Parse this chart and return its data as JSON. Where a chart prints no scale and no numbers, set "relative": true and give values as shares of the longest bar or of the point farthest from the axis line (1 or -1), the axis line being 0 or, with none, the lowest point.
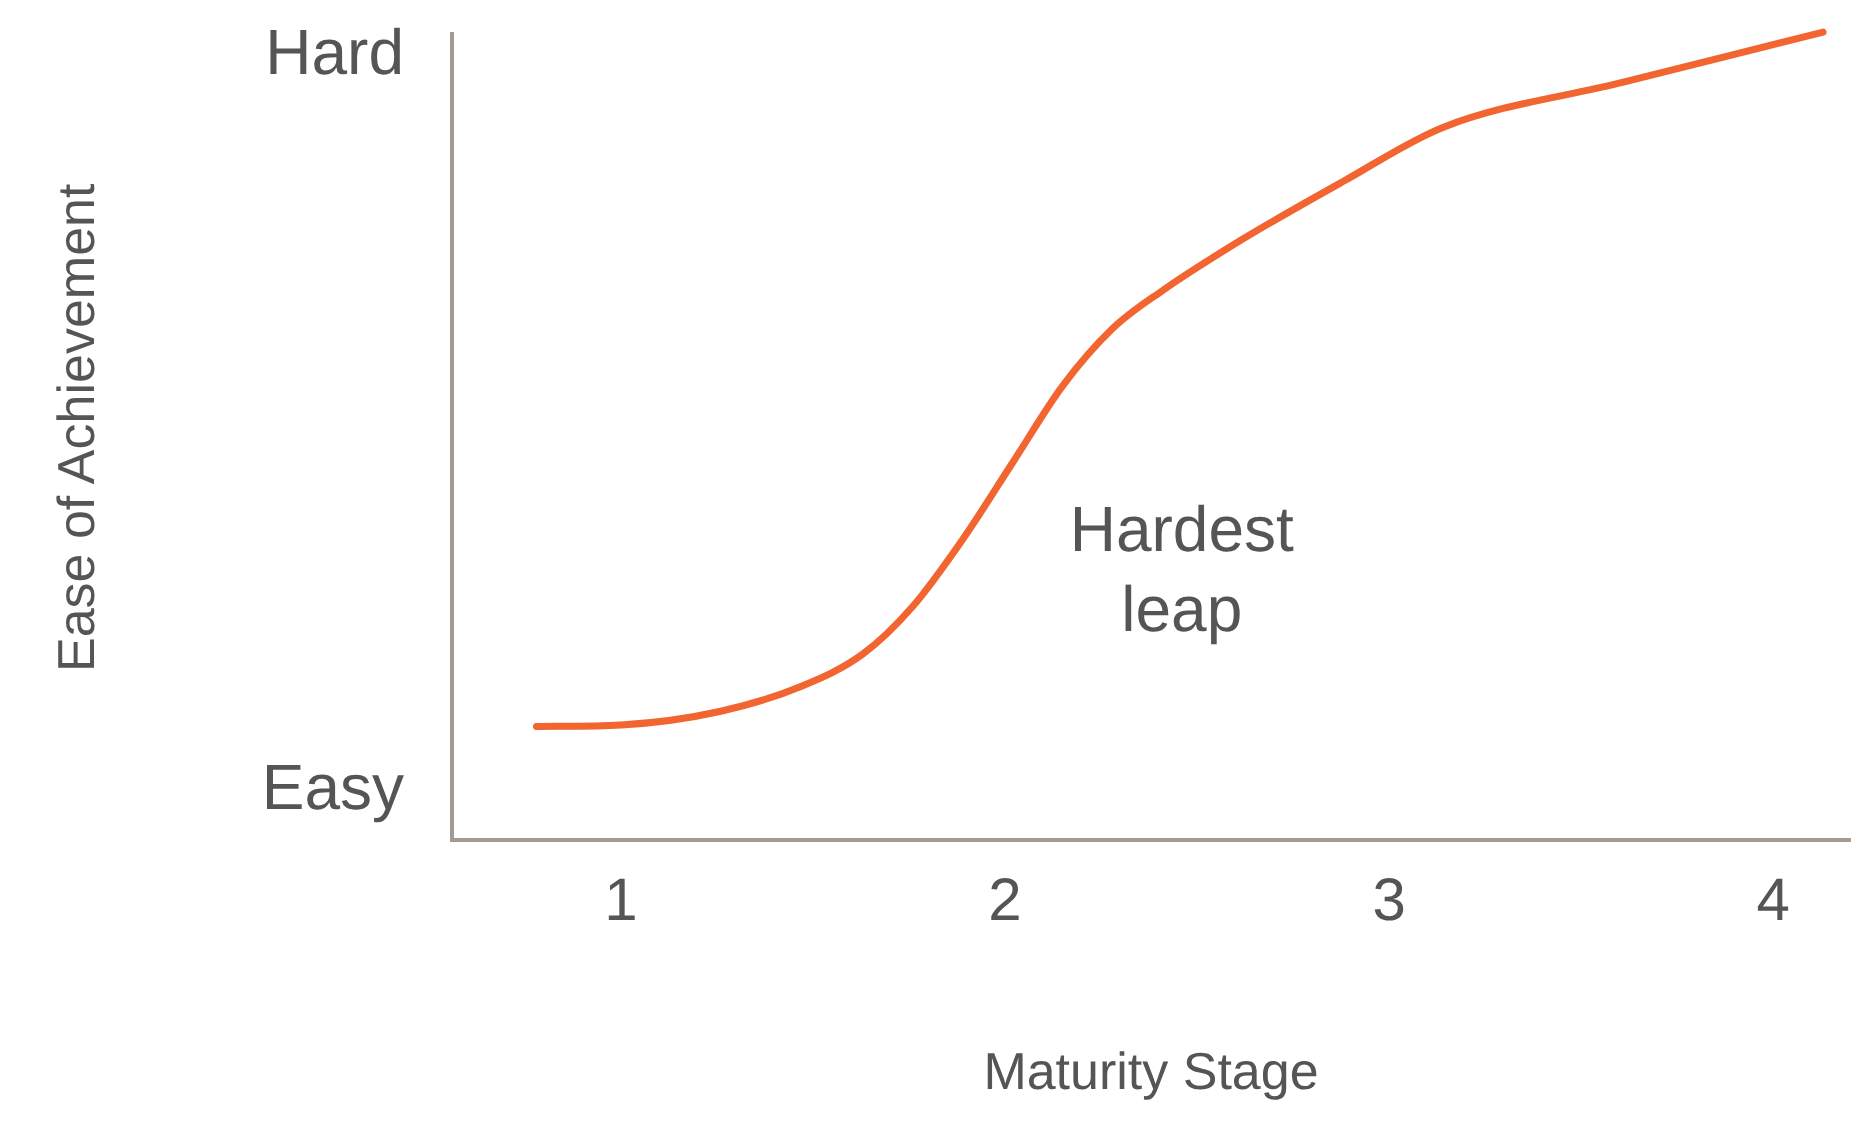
{
  "chart_data": {
    "type": "line",
    "xlabel": "Maturity Stage",
    "xlim": [
      0.56,
      4.2
    ],
    "xticks": [
      1,
      2,
      3,
      4
    ],
    "relative": true,
    "grid": false,
    "legend": false,
    "series": [
      {
        "color": "#f26430",
        "x": [
          0.78,
          1.0,
          1.26,
          1.47,
          1.63,
          1.76,
          1.89,
          2.02,
          2.15,
          2.28,
          2.41,
          2.62,
          2.88,
          3.14,
          3.61,
          4.13
        ],
        "values": [
          0.14,
          0.142,
          0.159,
          0.19,
          0.23,
          0.289,
          0.372,
          0.467,
          0.562,
          0.633,
          0.68,
          0.744,
          0.815,
          0.882,
          0.938,
          1.0
        ]
      }
    ],
    "annotations": [
      "Hard",
      "Easy",
      "Hardest\nleap",
      "Ease of Achievement"
    ]
  }
}
